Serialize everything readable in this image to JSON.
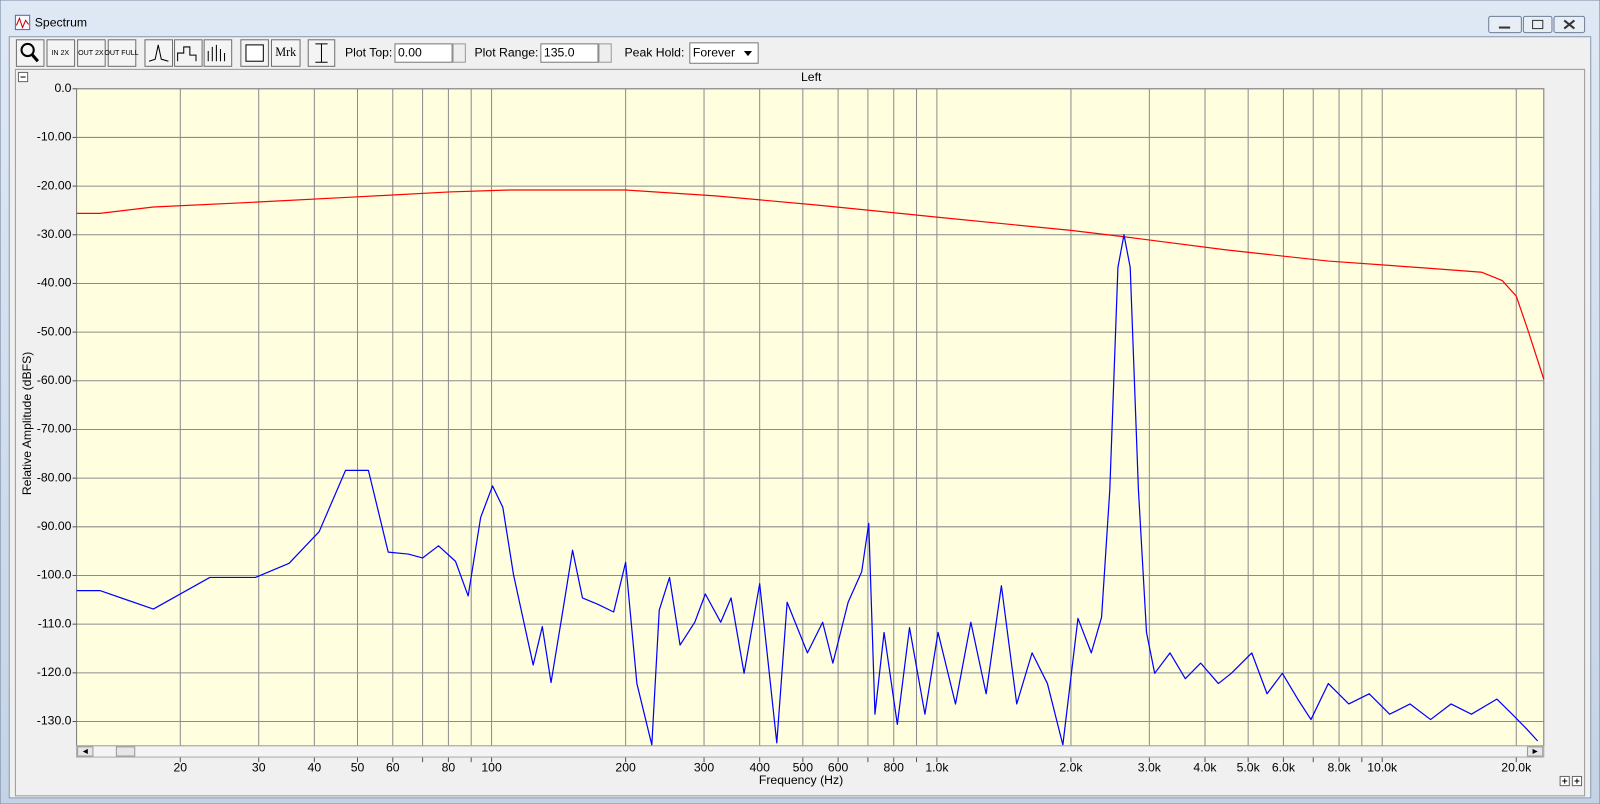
{
  "window": {
    "title": "Spectrum"
  },
  "toolbar": {
    "zoom_buttons": [
      "IN 2X",
      "OUT 2X",
      "OUT FULL"
    ],
    "marker_button": "Mrk",
    "plot_top_label": "Plot Top:",
    "plot_top": "0.00",
    "plot_range_label": "Plot Range:",
    "plot_range": "135.0",
    "peak_hold_label": "Peak Hold:",
    "peak_hold": "Forever"
  },
  "chart_data": {
    "type": "line",
    "title": "Left",
    "x_label": "Frequency (Hz)",
    "y_label": "Relative Amplitude (dBFS)",
    "xscale": "log",
    "grid": true,
    "plot_color": "#ffffe0",
    "xlim": [
      11.7,
      23060
    ],
    "ylim": [
      -135,
      0
    ],
    "xticks": [
      20,
      30,
      40,
      50,
      60,
      80,
      100,
      200,
      300,
      400,
      500,
      600,
      800,
      {
        "value": 1000,
        "label": "1.0k"
      },
      {
        "value": 2000,
        "label": "2.0k"
      },
      {
        "value": 3000,
        "label": "3.0k"
      },
      {
        "value": 4000,
        "label": "4.0k"
      },
      {
        "value": 5000,
        "label": "5.0k"
      },
      {
        "value": 6000,
        "label": "6.0k"
      },
      {
        "value": 8000,
        "label": "8.0k"
      },
      {
        "value": 10000,
        "label": "10.0k"
      },
      {
        "value": 20000,
        "label": "20.0k"
      }
    ],
    "xminor": [
      70,
      90,
      700,
      900,
      7000,
      9000
    ],
    "yticks": [
      {
        "value": 0,
        "label": "0.0"
      },
      {
        "value": -10,
        "label": "-10.00"
      },
      {
        "value": -20,
        "label": "-20.00"
      },
      {
        "value": -30,
        "label": "-30.00"
      },
      {
        "value": -40,
        "label": "-40.00"
      },
      {
        "value": -50,
        "label": "-50.00"
      },
      {
        "value": -60,
        "label": "-60.00"
      },
      {
        "value": -70,
        "label": "-70.00"
      },
      {
        "value": -80,
        "label": "-80.00"
      },
      {
        "value": -90,
        "label": "-90.00"
      },
      {
        "value": -100,
        "label": "-100.0"
      },
      {
        "value": -110,
        "label": "-110.0"
      },
      {
        "value": -120,
        "label": "-120.0"
      },
      {
        "value": -130,
        "label": "-130.0"
      }
    ],
    "series": [
      {
        "color": "#ff0000",
        "x": [
          11.7,
          13.2,
          17.4,
          29.5,
          50.1,
          80.4,
          110,
          200,
          318,
          540,
          1006,
          2000,
          2631,
          4460,
          7570,
          12840,
          16740,
          18600,
          20000,
          21300,
          23060
        ],
        "values": [
          -25.6,
          -25.6,
          -24.3,
          -23.3,
          -22.2,
          -21.2,
          -20.8,
          -20.8,
          -22.0,
          -23.9,
          -26.4,
          -29.1,
          -30.4,
          -33.1,
          -35.4,
          -36.9,
          -37.7,
          -39.4,
          -42.6,
          -49.9,
          -59.7
        ]
      },
      {
        "color": "#0000ff",
        "x": [
          11.7,
          13.2,
          17.4,
          23.3,
          29.5,
          35.1,
          41.0,
          47.0,
          52.9,
          58.6,
          65.0,
          70,
          76,
          83,
          88.6,
          94.5,
          100.5,
          106,
          112,
          124,
          130,
          136,
          145,
          152,
          160,
          173,
          188,
          200,
          212,
          229,
          238,
          251,
          265,
          286,
          302,
          327,
          345,
          369,
          400,
          437,
          461,
          512,
          554,
          584,
          632,
          678,
          703,
          726,
          761,
          815,
          868,
          940,
          1006,
          1101,
          1192,
          1290,
          1396,
          1511,
          1636,
          1771,
          1918,
          2074,
          2222,
          2343,
          2445,
          2550,
          2631,
          2717,
          2835,
          2956,
          3084,
          3338,
          3613,
          3912,
          4287,
          4583,
          5094,
          5513,
          5968,
          6461,
          6919,
          7568,
          8413,
          9350,
          10390,
          11550,
          12840,
          14270,
          15860,
          18090,
          19580,
          21190,
          22340
        ],
        "values": [
          -103.1,
          -103.1,
          -106.9,
          -100.4,
          -100.4,
          -97.5,
          -91.0,
          -78.4,
          -78.4,
          -95.2,
          -95.6,
          -96.4,
          -93.9,
          -97.1,
          -104.2,
          -88.1,
          -81.6,
          -86.0,
          -99.8,
          -118.4,
          -110.5,
          -122.0,
          -106.5,
          -94.8,
          -104.6,
          -105.9,
          -107.5,
          -97.3,
          -122.2,
          -134.8,
          -107.1,
          -100.4,
          -114.3,
          -109.6,
          -103.8,
          -109.6,
          -104.6,
          -120.1,
          -101.7,
          -134.4,
          -105.5,
          -115.9,
          -109.6,
          -118.0,
          -105.5,
          -99.2,
          -89.3,
          -128.5,
          -111.7,
          -130.6,
          -110.7,
          -128.5,
          -111.7,
          -126.4,
          -109.6,
          -124.3,
          -102.1,
          -126.4,
          -115.9,
          -122.2,
          -134.8,
          -108.8,
          -115.9,
          -108.6,
          -82.4,
          -36.7,
          -30.0,
          -36.7,
          -82.4,
          -111.7,
          -120.1,
          -115.9,
          -121.2,
          -118.0,
          -122.2,
          -120.1,
          -115.9,
          -124.3,
          -120.1,
          -125.4,
          -129.6,
          -122.2,
          -126.4,
          -124.3,
          -128.5,
          -126.4,
          -129.6,
          -126.4,
          -128.5,
          -125.4,
          -128.5,
          -131.7,
          -134.0
        ]
      }
    ]
  }
}
